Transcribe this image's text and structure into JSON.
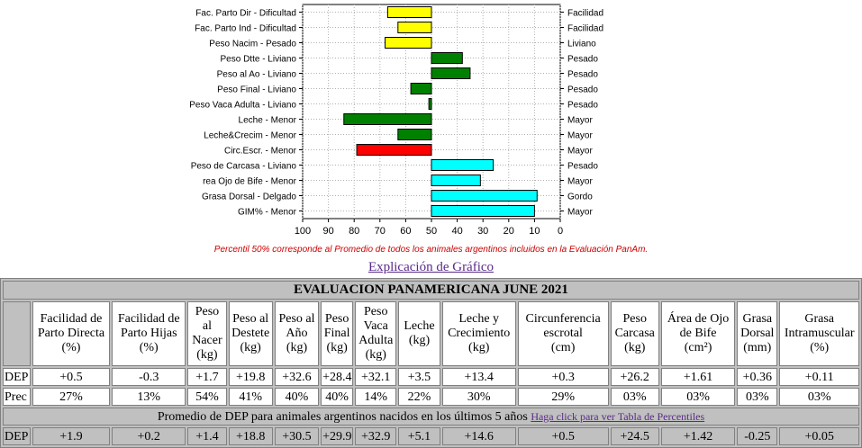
{
  "chart_data": {
    "type": "bar",
    "orientation": "horizontal",
    "baseline": 50,
    "xlim": [
      100,
      0
    ],
    "x_ticks": [
      "100",
      "90",
      "80",
      "70",
      "60",
      "50",
      "40",
      "30",
      "20",
      "10",
      "0"
    ],
    "rows": [
      {
        "left": "Fac. Parto Dir - Dificultad",
        "right": "Facilidad",
        "value": 67,
        "color": "#ffff00"
      },
      {
        "left": "Fac. Parto Ind - Dificultad",
        "right": "Facilidad",
        "value": 63,
        "color": "#ffff00"
      },
      {
        "left": "Peso Nacim - Pesado",
        "right": "Liviano",
        "value": 68,
        "color": "#ffff00"
      },
      {
        "left": "Peso Dtte - Liviano",
        "right": "Pesado",
        "value": 38,
        "color": "#008000"
      },
      {
        "left": "Peso al Ao - Liviano",
        "right": "Pesado",
        "value": 35,
        "color": "#008000"
      },
      {
        "left": "Peso Final - Liviano",
        "right": "Pesado",
        "value": 58,
        "color": "#008000"
      },
      {
        "left": "Peso Vaca Adulta - Liviano",
        "right": "Pesado",
        "value": 51,
        "color": "#008000"
      },
      {
        "left": "Leche - Menor",
        "right": "Mayor",
        "value": 84,
        "color": "#008000"
      },
      {
        "left": "Leche&Crecim - Menor",
        "right": "Mayor",
        "value": 63,
        "color": "#008000"
      },
      {
        "left": "Circ.Escr. - Menor",
        "right": "Mayor",
        "value": 79,
        "color": "#ff0000"
      },
      {
        "left": "Peso de Carcasa - Liviano",
        "right": "Pesado",
        "value": 26,
        "color": "#00ffff"
      },
      {
        "left": "rea Ojo de Bife - Menor",
        "right": "Mayor",
        "value": 31,
        "color": "#00ffff"
      },
      {
        "left": "Grasa Dorsal - Delgado",
        "right": "Gordo",
        "value": 9,
        "color": "#00ffff"
      },
      {
        "left": "GIM% - Menor",
        "right": "Mayor",
        "value": 10,
        "color": "#00ffff"
      }
    ]
  },
  "note": "Percentil 50% corresponde al Promedio de todos los animales argentinos incluidos en la Evaluación PanAm.",
  "explain_link": "Explicación de Gráfico",
  "table": {
    "title": "EVALUACION PANAMERICANA JUNE 2021",
    "headers": [
      [
        "Facilidad de",
        "Parto Directa",
        "(%)"
      ],
      [
        "Facilidad de",
        "Parto Hijas",
        "(%)"
      ],
      [
        "Peso al",
        "Nacer",
        "(kg)"
      ],
      [
        "Peso al",
        "Destete",
        "(kg)"
      ],
      [
        "Peso al",
        "Año",
        "(kg)"
      ],
      [
        "Peso",
        "Final",
        "(kg)"
      ],
      [
        "Peso",
        "Vaca",
        "Adulta",
        "(kg)"
      ],
      [
        "Leche",
        "(kg)"
      ],
      [
        "Leche y",
        "Crecimiento",
        "(kg)"
      ],
      [
        "Circunferencia",
        "escrotal",
        "(cm)"
      ],
      [
        "Peso",
        "Carcasa",
        "(kg)"
      ],
      [
        "Área de Ojo",
        "de Bife",
        "(cm²)"
      ],
      [
        "Grasa",
        "Dorsal",
        "(mm)"
      ],
      [
        "Grasa",
        "Intramuscular",
        "(%)"
      ]
    ],
    "dep_label": "DEP",
    "dep": [
      "+0.5",
      "-0.3",
      "+1.7",
      "+19.8",
      "+32.6",
      "+28.4",
      "+32.1",
      "+3.5",
      "+13.4",
      "+0.3",
      "+26.2",
      "+1.61",
      "+0.36",
      "+0.11"
    ],
    "prec_label": "Prec",
    "prec": [
      "27%",
      "13%",
      "54%",
      "41%",
      "40%",
      "40%",
      "14%",
      "22%",
      "30%",
      "29%",
      "03%",
      "03%",
      "03%",
      "03%"
    ],
    "promedio_text": "Promedio de DEP para animales argentinos nacidos en los últimos 5 años",
    "promedio_link": "Haga click para ver Tabla de Percentiles",
    "avg_label": "DEP",
    "avg": [
      "+1.9",
      "+0.2",
      "+1.4",
      "+18.8",
      "+30.5",
      "+29.9",
      "+32.9",
      "+5.1",
      "+14.6",
      "+0.5",
      "+24.5",
      "+1.42",
      "-0.25",
      "+0.05"
    ]
  }
}
